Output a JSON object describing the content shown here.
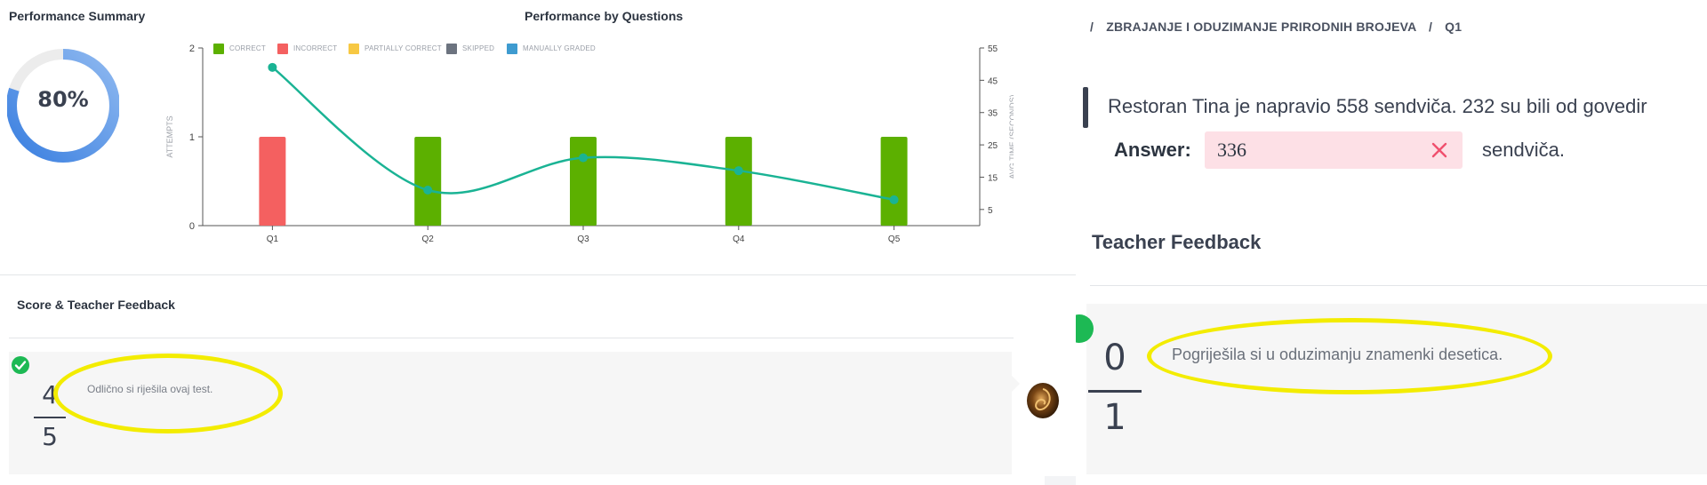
{
  "summary": {
    "title": "Performance Summary",
    "percent": "80%",
    "percent_value": 0.8
  },
  "chart_title": "Performance by Questions",
  "legend": [
    {
      "label": "CORRECT",
      "color": "#5cb000"
    },
    {
      "label": "INCORRECT",
      "color": "#f46060"
    },
    {
      "label": "PARTIALLY CORRECT",
      "color": "#f7c843"
    },
    {
      "label": "SKIPPED",
      "color": "#6c737f"
    },
    {
      "label": "MANUALLY GRADED",
      "color": "#3e9bd0"
    }
  ],
  "chart_data": {
    "type": "bar",
    "categories": [
      "Q1",
      "Q2",
      "Q3",
      "Q4",
      "Q5"
    ],
    "series": [
      {
        "name": "INCORRECT",
        "values": [
          1,
          0,
          0,
          0,
          0
        ],
        "color": "#f46060"
      },
      {
        "name": "CORRECT",
        "values": [
          0,
          1,
          1,
          1,
          1
        ],
        "color": "#5cb000"
      }
    ],
    "line_series": {
      "values": [
        49,
        11,
        21,
        17,
        8
      ],
      "color": "#1ab394"
    },
    "ylabel": "ATTEMPTS",
    "y2label": "AVG TIME (SECONDS)",
    "ylim": [
      0,
      2
    ],
    "y2lim": [
      0,
      55
    ],
    "yticks": [
      "0",
      "1",
      "2"
    ],
    "y2ticks": [
      "5",
      "15",
      "25",
      "35",
      "45",
      "55"
    ]
  },
  "feedback_left": {
    "title": "Score & Teacher Feedback",
    "score_num": "4",
    "score_den": "5",
    "comment": "Odlično si riješila ovaj test."
  },
  "breadcrumb": {
    "sep": "/",
    "topic": "ZBRAJANJE I ODUZIMANJE PRIRODNIH BROJEVA",
    "question": "Q1"
  },
  "question": {
    "text": "Restoran Tina je napravio 558 sendviča. 232 su bili od govedir",
    "answer_label": "Answer:",
    "answer_value": "336",
    "suffix": "sendviča."
  },
  "feedback_right": {
    "title": "Teacher Feedback",
    "score_num": "0",
    "score_den": "1",
    "comment": "Pogriješila si u oduzimanju znamenki desetica."
  }
}
